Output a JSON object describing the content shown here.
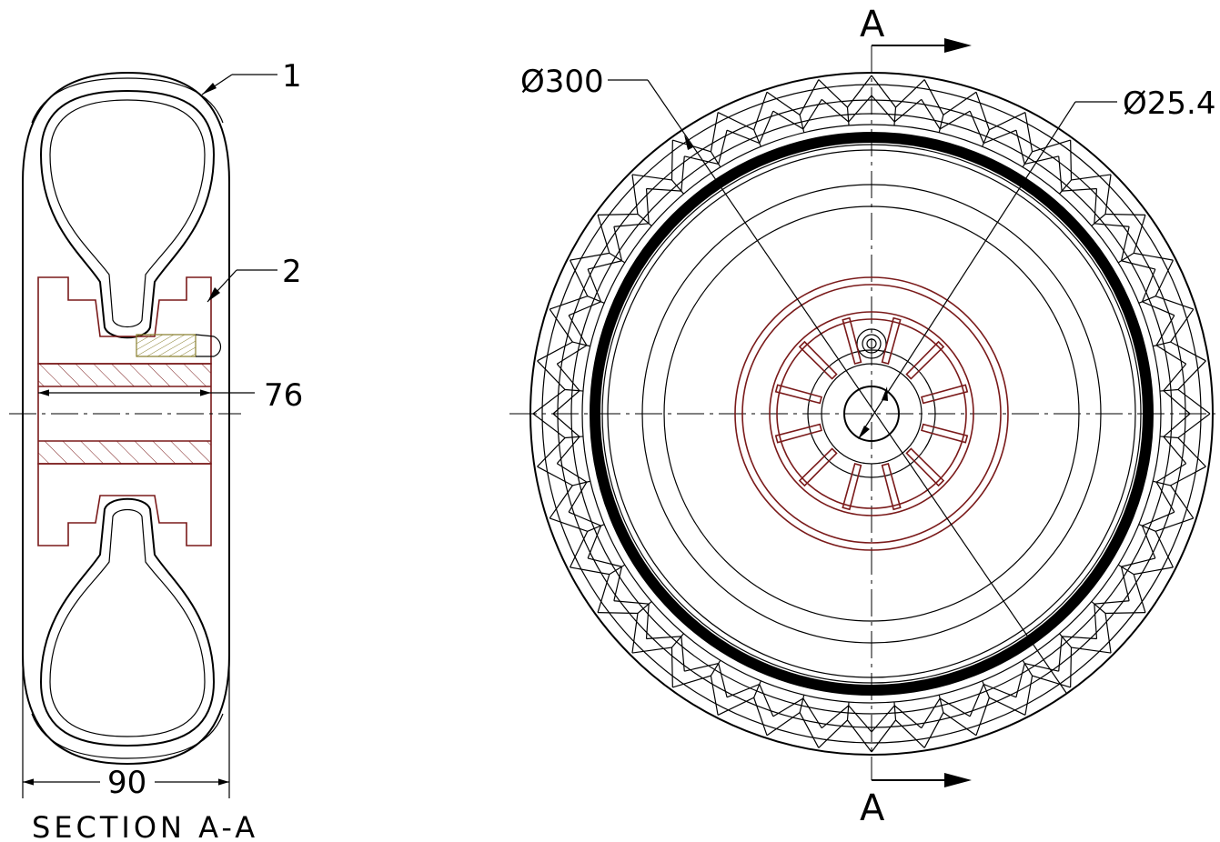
{
  "section_label": "SECTION A-A",
  "section_marker": "A",
  "dimensions": {
    "width_overall": "90",
    "bore_length": "76",
    "outer_diameter": "Ø300",
    "bore_diameter": "Ø25.4"
  },
  "balloons": {
    "item1": "1",
    "item2": "2"
  },
  "colors": {
    "line": "#000000",
    "hub": "#7a1a1a",
    "insert": "#c8c060"
  }
}
